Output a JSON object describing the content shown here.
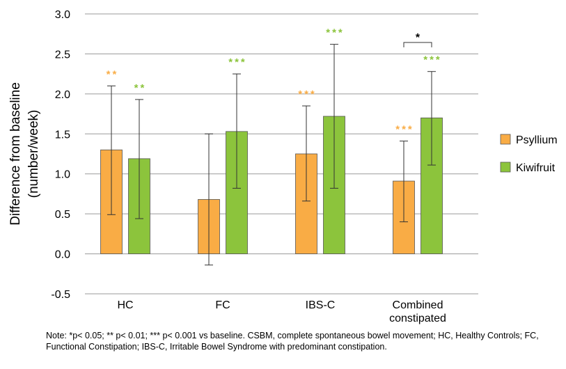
{
  "chart_data": {
    "type": "bar",
    "categories": [
      "HC",
      "FC",
      "IBS-C",
      "Combined constipated"
    ],
    "category_lines": [
      [
        "HC"
      ],
      [
        "FC"
      ],
      [
        "IBS-C"
      ],
      [
        "Combined",
        "constipated"
      ]
    ],
    "ylabel_lines": [
      "Difference from baseline",
      "(number/week)"
    ],
    "xlabel": "",
    "ylim": [
      -0.5,
      3.0
    ],
    "yticks": [
      3.0,
      2.5,
      2.0,
      1.5,
      1.0,
      0.5,
      0.0,
      -0.5
    ],
    "ytick_labels": [
      "3.0",
      "2.5",
      "2.0",
      "1.5",
      "1.0",
      "0.5",
      "0.0",
      "-0.5"
    ],
    "grid": true,
    "legend_position": "right",
    "series": [
      {
        "name": "Psyllium",
        "color": "#F9AC45",
        "sig_color": "#F9AC45",
        "values": [
          1.3,
          0.68,
          1.25,
          0.91
        ],
        "err_low": [
          0.49,
          -0.14,
          0.66,
          0.4
        ],
        "err_high": [
          2.1,
          1.5,
          1.85,
          1.41
        ],
        "sig": [
          "**",
          "",
          "***",
          "***"
        ]
      },
      {
        "name": "Kiwifruit",
        "color": "#8CC43C",
        "sig_color": "#8CC43C",
        "values": [
          1.19,
          1.53,
          1.72,
          1.7
        ],
        "err_low": [
          0.44,
          0.82,
          0.82,
          1.11
        ],
        "err_high": [
          1.93,
          2.25,
          2.62,
          2.28
        ],
        "sig": [
          "**",
          "***",
          "***",
          "***"
        ]
      }
    ],
    "comparison": {
      "category_index": 3,
      "label": "*"
    }
  },
  "note": "Note: *p< 0.05; ** p< 0.01; *** p< 0.001 vs baseline. CSBM, complete spontaneous bowel movement; HC, Healthy Controls; FC, Functional Constipation; IBS-C, Irritable Bowel Syndrome with predominant constipation."
}
